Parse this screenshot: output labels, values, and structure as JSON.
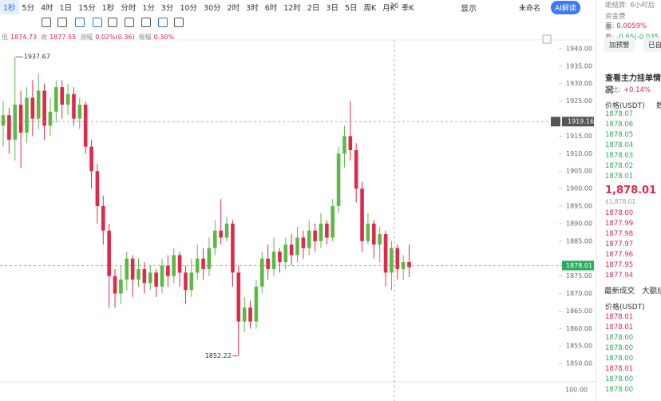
{
  "toolbar": {
    "intervals": [
      "1秒",
      "5分",
      "4时",
      "1日",
      "15分",
      "1秒",
      "分时",
      "1分",
      "3分",
      "10分",
      "30分",
      "2时",
      "3时",
      "6时",
      "12时",
      "2日",
      "3日",
      "5日",
      "周K",
      "月K",
      "季K"
    ],
    "count": "36",
    "display": "显示",
    "layout_name": "未命名",
    "ai_button": "AI解读"
  },
  "info": [
    {
      "label": "低",
      "value": "1874.73"
    },
    {
      "label": "收",
      "value": "1877.55"
    },
    {
      "label": "涨幅",
      "value": "0.02%(0.36)"
    },
    {
      "label": "振幅",
      "value": "0.30%"
    }
  ],
  "chart": {
    "type": "candlestick",
    "up_color": "#5cb946",
    "down_color": "#e0294a",
    "ylim": [
      1846.6,
      1942.5
    ],
    "yticks": [
      {
        "value": 1940,
        "label": "1940.00"
      },
      {
        "value": 1935,
        "label": "1935.00"
      },
      {
        "value": 1930,
        "label": "1930.00"
      },
      {
        "value": 1925,
        "label": "1925.00"
      },
      {
        "value": 1915,
        "label": "1915.00"
      },
      {
        "value": 1910,
        "label": "1910.00"
      },
      {
        "value": 1905,
        "label": "1905.00"
      },
      {
        "value": 1900,
        "label": "1900.00"
      },
      {
        "value": 1895,
        "label": "1895.00"
      },
      {
        "value": 1890,
        "label": "1890.00"
      },
      {
        "value": 1885,
        "label": "1885.00"
      },
      {
        "value": 1875,
        "label": "1875.00"
      },
      {
        "value": 1870,
        "label": "1870.00"
      },
      {
        "value": 1865,
        "label": "1865.00"
      },
      {
        "value": 1860,
        "label": "1860.00"
      },
      {
        "value": 1855,
        "label": "1855.00"
      },
      {
        "value": 1850,
        "label": "1850.00"
      }
    ],
    "candles": [
      [
        1918,
        1925,
        1912,
        1921
      ],
      [
        1921,
        1923,
        1910,
        1914
      ],
      [
        1914,
        1937.67,
        1908,
        1924
      ],
      [
        1924,
        1928,
        1906,
        1916
      ],
      [
        1916,
        1929,
        1913,
        1926
      ],
      [
        1926,
        1931,
        1915,
        1920
      ],
      [
        1920,
        1933,
        1917,
        1928
      ],
      [
        1928,
        1930,
        1914,
        1918
      ],
      [
        1918,
        1926,
        1915,
        1922
      ],
      [
        1922,
        1931,
        1919,
        1929
      ],
      [
        1929,
        1931,
        1920,
        1924
      ],
      [
        1924,
        1930,
        1921,
        1927
      ],
      [
        1927,
        1929,
        1918,
        1920
      ],
      [
        1920,
        1926,
        1917,
        1924
      ],
      [
        1924,
        1925,
        1910,
        1912
      ],
      [
        1912,
        1914,
        1900,
        1905
      ],
      [
        1905,
        1907,
        1890,
        1895
      ],
      [
        1895,
        1898,
        1884,
        1888
      ],
      [
        1888,
        1890,
        1866,
        1875
      ],
      [
        1875,
        1877,
        1866,
        1870
      ],
      [
        1870,
        1878,
        1867,
        1874
      ],
      [
        1874,
        1882,
        1871,
        1880
      ],
      [
        1880,
        1881,
        1869,
        1874
      ],
      [
        1874,
        1880,
        1872,
        1877
      ],
      [
        1877,
        1879,
        1870,
        1873
      ],
      [
        1873,
        1878,
        1871,
        1876
      ],
      [
        1876,
        1877,
        1869,
        1872
      ],
      [
        1872,
        1880,
        1870,
        1878
      ],
      [
        1878,
        1881,
        1872,
        1875
      ],
      [
        1875,
        1883,
        1873,
        1881
      ],
      [
        1881,
        1882,
        1872,
        1876
      ],
      [
        1876,
        1878,
        1867,
        1871
      ],
      [
        1871,
        1880,
        1869,
        1876
      ],
      [
        1876,
        1884,
        1874,
        1880
      ],
      [
        1880,
        1883,
        1874,
        1877
      ],
      [
        1877,
        1886,
        1875,
        1883
      ],
      [
        1883,
        1891,
        1881,
        1888
      ],
      [
        1888,
        1897,
        1884,
        1886
      ],
      [
        1886,
        1892,
        1885,
        1890
      ],
      [
        1890,
        1891,
        1872,
        1876
      ],
      [
        1876,
        1878,
        1852.22,
        1862
      ],
      [
        1862,
        1869,
        1859,
        1866
      ],
      [
        1866,
        1868,
        1860,
        1862
      ],
      [
        1862,
        1874,
        1860,
        1872
      ],
      [
        1872,
        1882,
        1870,
        1880
      ],
      [
        1880,
        1884,
        1874,
        1877
      ],
      [
        1877,
        1886,
        1875,
        1882
      ],
      [
        1882,
        1883,
        1876,
        1879
      ],
      [
        1879,
        1886,
        1877,
        1884
      ],
      [
        1884,
        1887,
        1878,
        1881
      ],
      [
        1881,
        1889,
        1879,
        1886
      ],
      [
        1886,
        1888,
        1880,
        1883
      ],
      [
        1883,
        1891,
        1881,
        1888
      ],
      [
        1888,
        1890,
        1882,
        1885
      ],
      [
        1885,
        1893,
        1883,
        1890
      ],
      [
        1890,
        1891,
        1884,
        1886
      ],
      [
        1886,
        1897,
        1885,
        1895
      ],
      [
        1895,
        1912,
        1893,
        1910
      ],
      [
        1910,
        1918,
        1906,
        1915
      ],
      [
        1915,
        1925,
        1908,
        1911
      ],
      [
        1911,
        1913,
        1896,
        1900
      ],
      [
        1900,
        1902,
        1882,
        1885
      ],
      [
        1885,
        1893,
        1884,
        1890
      ],
      [
        1890,
        1891,
        1880,
        1884
      ],
      [
        1884,
        1889,
        1879,
        1887
      ],
      [
        1887,
        1888,
        1872,
        1876
      ],
      [
        1876,
        1885,
        1871,
        1883
      ],
      [
        1883,
        1884,
        1874,
        1877
      ],
      [
        1877,
        1881,
        1874,
        1879
      ],
      [
        1879,
        1884,
        1874.73,
        1877.55
      ]
    ],
    "high_label": {
      "value": 1937.67,
      "label": "1937.67"
    },
    "low_label": {
      "value": 1852.22,
      "label": "1852.22"
    },
    "crosshair": {
      "value": 1919.16,
      "label": "1919.16"
    },
    "last_price": {
      "value": 1878.01,
      "label": "1878.01"
    },
    "indicator_label": "100.00"
  },
  "panel": {
    "settlement": {
      "label": "距结算:",
      "value": "6小时后"
    },
    "funding": {
      "label": "资金费率:",
      "value": "0.0059%"
    },
    "basis": {
      "label": "基差:",
      "value": "-0.65(-0.035"
    },
    "buttons": [
      "加预警",
      "已自"
    ],
    "orderbook_title": "查看主力挂单情况",
    "ratio": {
      "label": "委比:",
      "value": "+0.14%"
    },
    "price_header": "价格(USDT)",
    "qty_header": "数",
    "asks": [
      "1878.07",
      "1878.06",
      "1878.05",
      "1878.04",
      "1878.03",
      "1878.02",
      "1878.01"
    ],
    "last": "1,878.01",
    "last_usd": "$1,878.01",
    "bids": [
      "1878.00",
      "1877.99",
      "1877.98",
      "1877.97",
      "1877.96",
      "1877.95",
      "1877.94"
    ],
    "tabs": [
      "最新成交",
      "大额成"
    ],
    "trades_header": "价格(USDT)",
    "trades": [
      {
        "price": "1878.01",
        "color": "#e0294a"
      },
      {
        "price": "1878.01",
        "color": "#e0294a"
      },
      {
        "price": "1878.00",
        "color": "#2eab5e"
      },
      {
        "price": "1878.00",
        "color": "#2eab5e"
      },
      {
        "price": "1878.00",
        "color": "#2eab5e"
      },
      {
        "price": "1878.01",
        "color": "#e0294a"
      },
      {
        "price": "1878.00",
        "color": "#2eab5e"
      },
      {
        "price": "1878.00",
        "color": "#2eab5e"
      }
    ]
  }
}
